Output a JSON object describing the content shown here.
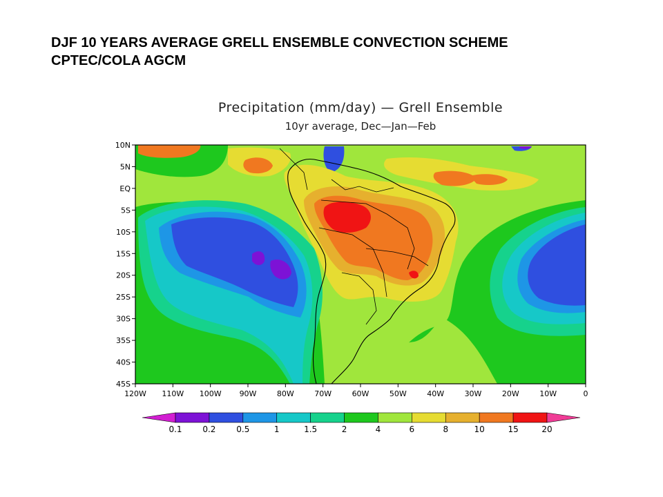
{
  "slide": {
    "title_line1": "DJF 10 YEARS AVERAGE  GRELL ENSEMBLE CONVECTION SCHEME",
    "title_line2": "CPTEC/COLA AGCM"
  },
  "map": {
    "title": "Precipitation (mm/day) — Grell Ensemble",
    "subtitle": "10yr average, Dec—Jan—Feb",
    "lon_range": [
      -120,
      0
    ],
    "lat_range": [
      -45,
      10
    ],
    "lat_ticks": [
      {
        "value": 10,
        "label": "10N"
      },
      {
        "value": 5,
        "label": "5N"
      },
      {
        "value": 0,
        "label": "EQ"
      },
      {
        "value": -5,
        "label": "5S"
      },
      {
        "value": -10,
        "label": "10S"
      },
      {
        "value": -15,
        "label": "15S"
      },
      {
        "value": -20,
        "label": "20S"
      },
      {
        "value": -25,
        "label": "25S"
      },
      {
        "value": -30,
        "label": "30S"
      },
      {
        "value": -35,
        "label": "35S"
      },
      {
        "value": -40,
        "label": "40S"
      },
      {
        "value": -45,
        "label": "45S"
      }
    ],
    "lon_ticks": [
      {
        "value": -120,
        "label": "120W"
      },
      {
        "value": -110,
        "label": "110W"
      },
      {
        "value": -100,
        "label": "100W"
      },
      {
        "value": -90,
        "label": "90W"
      },
      {
        "value": -80,
        "label": "80W"
      },
      {
        "value": -70,
        "label": "70W"
      },
      {
        "value": -60,
        "label": "60W"
      },
      {
        "value": -50,
        "label": "50W"
      },
      {
        "value": -40,
        "label": "40W"
      },
      {
        "value": -30,
        "label": "30W"
      },
      {
        "value": -20,
        "label": "20W"
      },
      {
        "value": -10,
        "label": "10W"
      },
      {
        "value": 0,
        "label": "0"
      }
    ]
  },
  "colorbar": {
    "unit": "mm/day",
    "levels": [
      "0.1",
      "0.2",
      "0.5",
      "1",
      "1.5",
      "2",
      "4",
      "6",
      "8",
      "10",
      "15",
      "20"
    ],
    "colors": [
      "#d21ed2",
      "#7d12d6",
      "#2f4fe0",
      "#1e96e6",
      "#16c8c8",
      "#16d28c",
      "#1ec81e",
      "#a0e63c",
      "#e6dc32",
      "#e6b02e",
      "#f07820",
      "#f01414",
      "#f03c96"
    ]
  }
}
